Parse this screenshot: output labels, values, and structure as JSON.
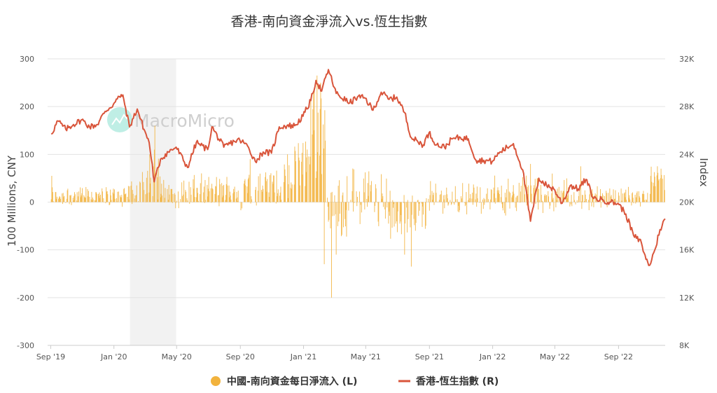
{
  "chart_data": {
    "type": "bar+line",
    "title": "香港-南向資金淨流入vs.恆生指數",
    "watermark": "MacroMicro",
    "left_axis": {
      "title": "100 Millions, CNY",
      "ticks": [
        300,
        200,
        100,
        0,
        -100,
        -200,
        -300
      ],
      "range": [
        -300,
        300
      ]
    },
    "right_axis": {
      "title": "Index",
      "ticks": [
        "32K",
        "28K",
        "24K",
        "20K",
        "16K",
        "12K",
        "8K"
      ],
      "range": [
        8000,
        32000
      ]
    },
    "x_axis": {
      "ticks": [
        "Sep '19",
        "Jan '20",
        "May '20",
        "Sep '20",
        "Jan '21",
        "May '21",
        "Sep '21",
        "Jan '22",
        "May '22",
        "Sep '22"
      ]
    },
    "x_tick_dates": [
      "2019-09-01",
      "2020-01-01",
      "2020-05-01",
      "2020-09-01",
      "2021-01-01",
      "2021-05-01",
      "2021-09-01",
      "2022-01-01",
      "2022-05-01",
      "2022-09-01"
    ],
    "x_range": [
      "2019-08-26",
      "2022-11-30"
    ],
    "shaded_region": {
      "start": "2020-02-01",
      "end": "2020-04-30",
      "color": "#f2f2f2"
    },
    "grid": "horizontal",
    "legend_position": "bottom-center",
    "series": [
      {
        "name": "中國-南向資金每日淨流入 (L)",
        "type": "bar",
        "axis": "left",
        "color": "#f2b33d",
        "segments": [
          {
            "start": "2019-09-01",
            "end": "2019-10-15",
            "mean": 14,
            "amp": 20
          },
          {
            "start": "2019-10-15",
            "end": "2020-01-20",
            "mean": 13,
            "amp": 18
          },
          {
            "start": "2020-01-20",
            "end": "2020-02-20",
            "mean": 18,
            "amp": 25
          },
          {
            "start": "2020-02-20",
            "end": "2020-03-31",
            "mean": 55,
            "amp": 55
          },
          {
            "start": "2020-03-31",
            "end": "2020-05-15",
            "mean": 18,
            "amp": 25
          },
          {
            "start": "2020-05-15",
            "end": "2020-08-31",
            "mean": 22,
            "amp": 30
          },
          {
            "start": "2020-09-01",
            "end": "2020-12-15",
            "mean": 32,
            "amp": 40
          },
          {
            "start": "2020-12-15",
            "end": "2021-01-15",
            "mean": 90,
            "amp": 60
          },
          {
            "start": "2021-01-15",
            "end": "2021-02-15",
            "mean": 170,
            "amp": 90
          },
          {
            "start": "2021-02-15",
            "end": "2021-03-31",
            "mean": -20,
            "amp": 60
          },
          {
            "start": "2021-03-31",
            "end": "2021-06-15",
            "mean": 15,
            "amp": 55
          },
          {
            "start": "2021-06-15",
            "end": "2021-08-31",
            "mean": -25,
            "amp": 45
          },
          {
            "start": "2021-09-01",
            "end": "2021-12-31",
            "mean": 10,
            "amp": 30
          },
          {
            "start": "2022-01-01",
            "end": "2022-05-31",
            "mean": 15,
            "amp": 35
          },
          {
            "start": "2022-06-01",
            "end": "2022-08-31",
            "mean": 10,
            "amp": 25
          },
          {
            "start": "2022-09-01",
            "end": "2022-10-31",
            "mean": 12,
            "amp": 18
          },
          {
            "start": "2022-11-01",
            "end": "2022-11-30",
            "mean": 45,
            "amp": 30
          }
        ],
        "spikes": [
          {
            "date": "2019-09-03",
            "value": 55
          },
          {
            "date": "2020-03-10",
            "value": 100
          },
          {
            "date": "2020-03-20",
            "value": 160
          },
          {
            "date": "2020-09-20",
            "value": 90
          },
          {
            "date": "2020-12-01",
            "value": 100
          },
          {
            "date": "2021-01-20",
            "value": 230
          },
          {
            "date": "2021-01-27",
            "value": 265
          },
          {
            "date": "2021-02-03",
            "value": 250
          },
          {
            "date": "2021-02-10",
            "value": -130
          },
          {
            "date": "2021-02-24",
            "value": -200
          },
          {
            "date": "2021-03-05",
            "value": -110
          },
          {
            "date": "2021-07-15",
            "value": -110
          },
          {
            "date": "2021-07-28",
            "value": -135
          },
          {
            "date": "2021-08-05",
            "value": -60
          },
          {
            "date": "2022-03-15",
            "value": 80
          },
          {
            "date": "2022-06-20",
            "value": 75
          },
          {
            "date": "2022-11-15",
            "value": 75
          },
          {
            "date": "2022-11-22",
            "value": 70
          }
        ]
      },
      {
        "name": "香港-恆生指數 (R)",
        "type": "line",
        "axis": "right",
        "color": "#d9553b",
        "points": [
          [
            "2019-09-02",
            25700
          ],
          [
            "2019-09-15",
            26800
          ],
          [
            "2019-09-30",
            26100
          ],
          [
            "2019-10-15",
            26500
          ],
          [
            "2019-10-31",
            26900
          ],
          [
            "2019-11-15",
            26300
          ],
          [
            "2019-11-30",
            26500
          ],
          [
            "2019-12-15",
            27600
          ],
          [
            "2019-12-31",
            28200
          ],
          [
            "2020-01-15",
            29000
          ],
          [
            "2020-01-20",
            28600
          ],
          [
            "2020-01-31",
            26300
          ],
          [
            "2020-02-15",
            27800
          ],
          [
            "2020-02-28",
            26100
          ],
          [
            "2020-03-09",
            25000
          ],
          [
            "2020-03-19",
            21700
          ],
          [
            "2020-03-31",
            23600
          ],
          [
            "2020-04-15",
            24200
          ],
          [
            "2020-04-30",
            24600
          ],
          [
            "2020-05-22",
            22900
          ],
          [
            "2020-06-08",
            25000
          ],
          [
            "2020-06-30",
            24400
          ],
          [
            "2020-07-08",
            26300
          ],
          [
            "2020-07-31",
            24600
          ],
          [
            "2020-08-20",
            25100
          ],
          [
            "2020-08-31",
            25200
          ],
          [
            "2020-09-15",
            24700
          ],
          [
            "2020-09-30",
            23400
          ],
          [
            "2020-10-15",
            24200
          ],
          [
            "2020-10-31",
            24100
          ],
          [
            "2020-11-15",
            26300
          ],
          [
            "2020-11-30",
            26400
          ],
          [
            "2020-12-15",
            26400
          ],
          [
            "2020-12-31",
            27200
          ],
          [
            "2021-01-15",
            28500
          ],
          [
            "2021-01-25",
            30200
          ],
          [
            "2021-02-05",
            29300
          ],
          [
            "2021-02-18",
            31100
          ],
          [
            "2021-03-05",
            29100
          ],
          [
            "2021-03-31",
            28300
          ],
          [
            "2021-04-15",
            28800
          ],
          [
            "2021-04-30",
            28700
          ],
          [
            "2021-05-15",
            27700
          ],
          [
            "2021-05-31",
            29200
          ],
          [
            "2021-06-15",
            28600
          ],
          [
            "2021-06-30",
            28800
          ],
          [
            "2021-07-15",
            27500
          ],
          [
            "2021-07-28",
            25400
          ],
          [
            "2021-08-20",
            24800
          ],
          [
            "2021-08-31",
            25800
          ],
          [
            "2021-09-15",
            24800
          ],
          [
            "2021-09-30",
            24600
          ],
          [
            "2021-10-15",
            25300
          ],
          [
            "2021-10-31",
            25400
          ],
          [
            "2021-11-15",
            25300
          ],
          [
            "2021-11-30",
            23500
          ],
          [
            "2021-12-15",
            23500
          ],
          [
            "2021-12-31",
            23400
          ],
          [
            "2022-01-15",
            24200
          ],
          [
            "2022-02-10",
            24900
          ],
          [
            "2022-02-28",
            22700
          ],
          [
            "2022-03-15",
            18400
          ],
          [
            "2022-03-31",
            22000
          ],
          [
            "2022-04-15",
            21400
          ],
          [
            "2022-04-29",
            21100
          ],
          [
            "2022-05-15",
            19900
          ],
          [
            "2022-05-31",
            21400
          ],
          [
            "2022-06-15",
            21100
          ],
          [
            "2022-06-30",
            21900
          ],
          [
            "2022-07-15",
            20300
          ],
          [
            "2022-07-31",
            20200
          ],
          [
            "2022-08-15",
            20000
          ],
          [
            "2022-08-31",
            19900
          ],
          [
            "2022-09-15",
            19000
          ],
          [
            "2022-09-30",
            17200
          ],
          [
            "2022-10-15",
            16600
          ],
          [
            "2022-10-24",
            15200
          ],
          [
            "2022-10-31",
            14700
          ],
          [
            "2022-11-10",
            16000
          ],
          [
            "2022-11-20",
            17700
          ],
          [
            "2022-11-30",
            18600
          ]
        ]
      }
    ]
  }
}
